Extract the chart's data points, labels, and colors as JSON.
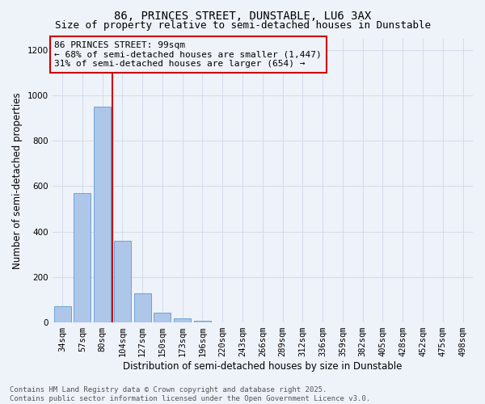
{
  "title": "86, PRINCES STREET, DUNSTABLE, LU6 3AX",
  "subtitle": "Size of property relative to semi-detached houses in Dunstable",
  "xlabel": "Distribution of semi-detached houses by size in Dunstable",
  "ylabel": "Number of semi-detached properties",
  "categories": [
    "34sqm",
    "57sqm",
    "80sqm",
    "104sqm",
    "127sqm",
    "150sqm",
    "173sqm",
    "196sqm",
    "220sqm",
    "243sqm",
    "266sqm",
    "289sqm",
    "312sqm",
    "336sqm",
    "359sqm",
    "382sqm",
    "405sqm",
    "428sqm",
    "452sqm",
    "475sqm",
    "498sqm"
  ],
  "values": [
    70,
    570,
    950,
    360,
    130,
    42,
    18,
    8,
    0,
    0,
    0,
    0,
    0,
    0,
    0,
    0,
    0,
    0,
    0,
    0,
    0
  ],
  "bar_color": "#aec6e8",
  "bar_edge_color": "#5b9bd5",
  "vline_color": "#cc0000",
  "annotation_text": "86 PRINCES STREET: 99sqm\n← 68% of semi-detached houses are smaller (1,447)\n31% of semi-detached houses are larger (654) →",
  "annotation_box_color": "#cc0000",
  "ylim": [
    0,
    1250
  ],
  "yticks": [
    0,
    200,
    400,
    600,
    800,
    1000,
    1200
  ],
  "grid_color": "#d0d8e8",
  "background_color": "#eef2f9",
  "footer_text": "Contains HM Land Registry data © Crown copyright and database right 2025.\nContains public sector information licensed under the Open Government Licence v3.0.",
  "title_fontsize": 10,
  "subtitle_fontsize": 9,
  "axis_label_fontsize": 8.5,
  "tick_fontsize": 7.5,
  "footer_fontsize": 6.5
}
